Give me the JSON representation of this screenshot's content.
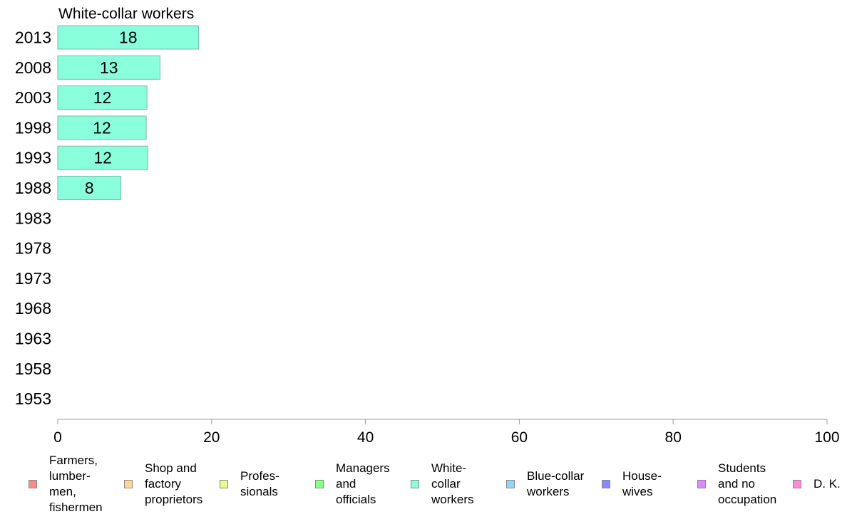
{
  "chart_data": {
    "type": "bar",
    "orientation": "horizontal",
    "title": "White-collar workers",
    "categories": [
      "2013",
      "2008",
      "2003",
      "1998",
      "1993",
      "1988",
      "1983",
      "1978",
      "1973",
      "1968",
      "1963",
      "1958",
      "1953"
    ],
    "series": [
      {
        "name": "White-collar workers",
        "color": "#8affdc",
        "values": [
          18.3,
          13.3,
          11.6,
          11.5,
          11.7,
          8.2,
          null,
          null,
          null,
          null,
          null,
          null,
          null
        ],
        "labels": [
          "18",
          "13",
          "12",
          "12",
          "12",
          "8",
          "",
          "",
          "",
          "",
          "",
          "",
          ""
        ]
      }
    ],
    "xlim": [
      0,
      100
    ],
    "xticks": [
      "0",
      "20",
      "40",
      "60",
      "80",
      "100"
    ],
    "xlabel": "",
    "ylabel": "",
    "grid": false,
    "legend_position": "bottom",
    "legend": [
      {
        "label": "Farmers,\nlumber-\nmen,\nfishermen",
        "color": "#ff8a8a"
      },
      {
        "label": "Shop and\nfactory\nproprietors",
        "color": "#ffd98a"
      },
      {
        "label": "Profes-\nsionals",
        "color": "#e4ff8a"
      },
      {
        "label": "Managers\nand\nofficials",
        "color": "#8aff8a"
      },
      {
        "label": "White-\ncollar\nworkers",
        "color": "#8affdc"
      },
      {
        "label": "Blue-collar\nworkers",
        "color": "#8ad8ff"
      },
      {
        "label": "House-\nwives",
        "color": "#8a8aff"
      },
      {
        "label": "Students\nand no\noccupation",
        "color": "#dc8aff"
      },
      {
        "label": "D. K.",
        "color": "#ff8adc"
      }
    ]
  }
}
